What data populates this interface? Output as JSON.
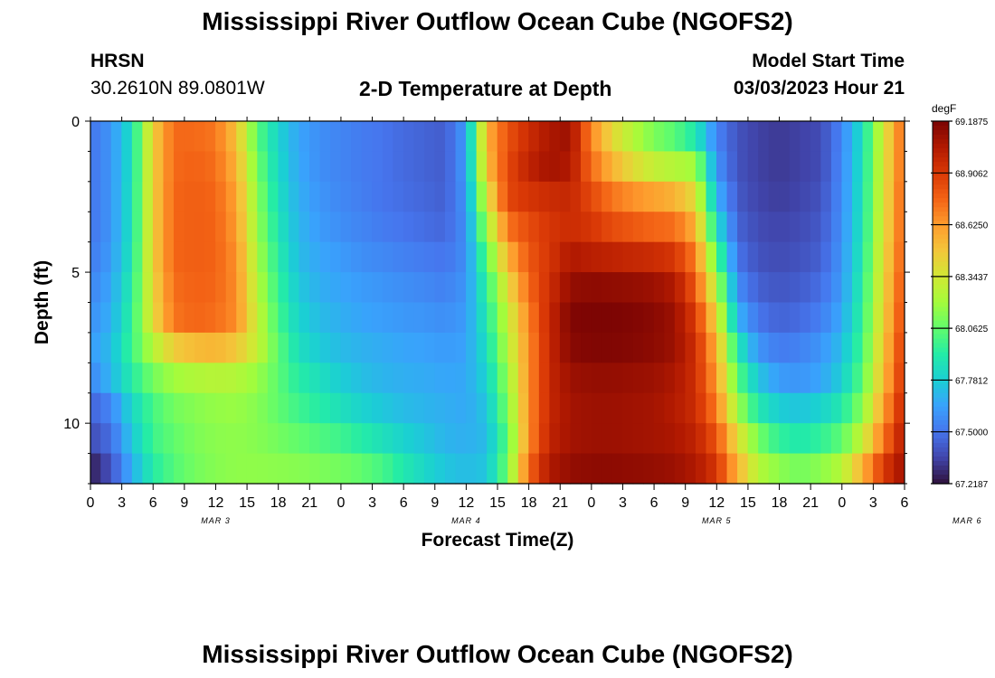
{
  "page": {
    "title": "Mississippi River Outflow Ocean Cube (NGOFS2)",
    "bottom_title": "Mississippi River Outflow Ocean Cube (NGOFS2)",
    "station": "HRSN",
    "coords": "30.2610N  89.0801W",
    "start_label": "Model Start Time",
    "start_value": "03/03/2023 Hour 21"
  },
  "colormap": [
    "#30123b",
    "#4145ab",
    "#4675ed",
    "#39a2fc",
    "#1bcfd4",
    "#24eca6",
    "#61fc6c",
    "#a4fc3b",
    "#d1e834",
    "#f3c63a",
    "#fe9b2d",
    "#f36315",
    "#d93806",
    "#b11901",
    "#7a0403"
  ],
  "chart_data": {
    "type": "heatmap",
    "title": "2-D Temperature at Depth",
    "xlabel": "Forecast Time(Z)",
    "ylabel": "Depth (ft)",
    "colorbar_unit": "degF",
    "colorbar_ticks": [
      "69.1875",
      "68.9062",
      "68.6250",
      "68.3437",
      "68.0625",
      "67.7812",
      "67.5000",
      "67.2187"
    ],
    "vmin": 67.2187,
    "vmax": 69.1875,
    "y_ticks": [
      "0",
      "5",
      "10"
    ],
    "ylim": [
      0,
      12
    ],
    "x_tick_labels": [
      "0",
      "3",
      "6",
      "9",
      "12",
      "15",
      "18",
      "21",
      "0",
      "3",
      "6",
      "9",
      "12",
      "15",
      "18",
      "21",
      "0",
      "3",
      "6",
      "9",
      "12",
      "15",
      "18",
      "21",
      "0",
      "3",
      "6"
    ],
    "date_labels": [
      "MAR 3",
      "MAR 4",
      "MAR 5",
      "MAR 6"
    ],
    "x_range_hours": [
      0,
      78
    ],
    "depth_levels_ft": [
      0.5,
      1.5,
      2.5,
      3.5,
      4.5,
      5.5,
      6.5,
      7.5,
      8.5,
      9.5,
      10.5,
      11.5
    ],
    "time_hours": [
      0,
      2,
      4,
      6,
      8,
      10,
      12,
      14,
      16,
      18,
      20,
      22,
      24,
      26,
      28,
      30,
      32,
      34,
      36,
      38,
      40,
      42,
      44,
      46,
      48,
      50,
      52,
      54,
      56,
      58,
      60,
      62,
      64,
      66,
      68,
      70,
      72,
      74,
      76,
      78
    ],
    "values_degF": [
      [
        67.5,
        67.6,
        67.85,
        68.45,
        68.75,
        68.75,
        68.72,
        68.5,
        68.05,
        67.8,
        67.65,
        67.58,
        67.55,
        67.52,
        67.5,
        67.47,
        67.45,
        67.43,
        67.62,
        68.55,
        68.82,
        68.96,
        69.06,
        69.1,
        68.68,
        68.42,
        68.25,
        68.12,
        68.04,
        67.9,
        67.55,
        67.4,
        67.35,
        67.33,
        67.35,
        67.38,
        67.55,
        67.85,
        68.35,
        68.78
      ],
      [
        67.5,
        67.6,
        67.85,
        68.45,
        68.75,
        68.77,
        68.74,
        68.55,
        68.1,
        67.82,
        67.66,
        67.58,
        67.55,
        67.52,
        67.5,
        67.47,
        67.45,
        67.43,
        67.62,
        68.5,
        68.85,
        69.0,
        69.08,
        69.05,
        68.75,
        68.55,
        68.4,
        68.3,
        68.25,
        68.2,
        67.6,
        67.4,
        67.35,
        67.33,
        67.35,
        67.38,
        67.56,
        67.86,
        68.36,
        68.78
      ],
      [
        67.5,
        67.6,
        67.86,
        68.45,
        68.76,
        68.78,
        68.76,
        68.6,
        68.15,
        67.85,
        67.68,
        67.6,
        67.56,
        67.53,
        67.5,
        67.48,
        67.46,
        67.44,
        67.6,
        68.35,
        68.86,
        68.92,
        68.96,
        68.98,
        68.85,
        68.72,
        68.65,
        68.6,
        68.55,
        68.4,
        67.7,
        67.42,
        67.36,
        67.34,
        67.36,
        67.4,
        67.57,
        67.87,
        68.37,
        68.8
      ],
      [
        67.5,
        67.6,
        67.86,
        68.45,
        68.76,
        68.78,
        68.77,
        68.62,
        68.18,
        67.88,
        67.7,
        67.62,
        67.58,
        67.55,
        67.52,
        67.5,
        67.48,
        67.46,
        67.58,
        68.2,
        68.72,
        68.84,
        68.92,
        68.96,
        68.92,
        68.84,
        68.8,
        68.76,
        68.74,
        68.56,
        67.85,
        67.45,
        67.38,
        67.36,
        67.38,
        67.42,
        67.58,
        67.88,
        68.38,
        68.8
      ],
      [
        67.52,
        67.62,
        67.88,
        68.45,
        68.76,
        68.78,
        68.77,
        68.65,
        68.22,
        67.92,
        67.72,
        67.65,
        67.62,
        67.58,
        67.56,
        67.54,
        67.52,
        67.5,
        67.58,
        68.05,
        68.55,
        68.8,
        68.92,
        69.05,
        69.02,
        69.0,
        68.98,
        68.96,
        68.92,
        68.7,
        68.05,
        67.5,
        67.4,
        67.38,
        67.4,
        67.44,
        67.6,
        67.9,
        68.4,
        68.82
      ],
      [
        67.55,
        67.65,
        67.92,
        68.42,
        68.74,
        68.77,
        68.76,
        68.66,
        68.26,
        67.96,
        67.76,
        67.68,
        67.65,
        67.62,
        67.6,
        67.58,
        67.56,
        67.54,
        67.6,
        67.95,
        68.4,
        68.75,
        68.95,
        69.12,
        69.14,
        69.13,
        69.12,
        69.1,
        69.05,
        68.8,
        68.25,
        67.58,
        67.44,
        67.41,
        67.43,
        67.48,
        67.62,
        67.93,
        68.42,
        68.85
      ],
      [
        67.58,
        67.68,
        67.95,
        68.4,
        68.72,
        68.76,
        68.74,
        68.66,
        68.3,
        68.0,
        67.8,
        67.72,
        67.68,
        67.65,
        67.63,
        67.61,
        67.6,
        67.58,
        67.62,
        67.9,
        68.3,
        68.68,
        68.98,
        69.17,
        69.18,
        69.18,
        69.17,
        69.15,
        69.1,
        68.9,
        68.42,
        67.7,
        67.5,
        67.45,
        67.47,
        67.53,
        67.66,
        67.96,
        68.44,
        68.88
      ],
      [
        67.62,
        67.72,
        67.98,
        68.25,
        68.46,
        68.52,
        68.54,
        68.48,
        68.3,
        68.05,
        67.85,
        67.77,
        67.72,
        67.69,
        67.67,
        67.65,
        67.64,
        67.62,
        67.64,
        67.85,
        68.25,
        68.65,
        68.98,
        69.15,
        69.17,
        69.17,
        69.16,
        69.14,
        69.1,
        68.95,
        68.55,
        67.9,
        67.6,
        67.52,
        67.54,
        67.6,
        67.72,
        68.0,
        68.48,
        68.92
      ],
      [
        67.56,
        67.7,
        67.92,
        68.1,
        68.2,
        68.24,
        68.26,
        68.25,
        68.18,
        68.05,
        67.92,
        67.85,
        67.78,
        67.73,
        67.7,
        67.68,
        67.67,
        67.65,
        67.66,
        67.8,
        68.18,
        68.65,
        68.98,
        69.1,
        69.12,
        69.12,
        69.11,
        69.1,
        69.06,
        68.95,
        68.62,
        68.05,
        67.75,
        67.62,
        67.6,
        67.65,
        67.78,
        68.05,
        68.52,
        68.95
      ],
      [
        67.45,
        67.55,
        67.82,
        68.0,
        68.1,
        68.14,
        68.17,
        68.18,
        68.14,
        68.06,
        67.98,
        67.92,
        67.86,
        67.8,
        67.76,
        67.72,
        67.7,
        67.68,
        67.66,
        67.75,
        68.12,
        68.65,
        68.98,
        69.08,
        69.1,
        69.1,
        69.09,
        69.08,
        69.04,
        68.96,
        68.7,
        68.2,
        67.9,
        67.78,
        67.75,
        67.8,
        67.9,
        68.15,
        68.6,
        69.0
      ],
      [
        67.38,
        67.48,
        67.76,
        67.98,
        68.06,
        68.12,
        68.15,
        68.16,
        68.14,
        68.1,
        68.06,
        68.02,
        67.98,
        67.92,
        67.86,
        67.8,
        67.75,
        67.7,
        67.68,
        67.72,
        68.05,
        68.65,
        69.0,
        69.08,
        69.1,
        69.1,
        69.09,
        69.08,
        69.06,
        69.0,
        68.82,
        68.4,
        68.1,
        67.95,
        67.9,
        67.95,
        68.05,
        68.3,
        68.72,
        69.05
      ],
      [
        67.25,
        67.4,
        67.68,
        67.92,
        68.03,
        68.1,
        68.14,
        68.16,
        68.16,
        68.15,
        68.14,
        68.12,
        68.1,
        68.06,
        68.0,
        67.9,
        67.82,
        67.75,
        67.72,
        67.75,
        68.1,
        68.75,
        69.05,
        69.12,
        69.14,
        69.14,
        69.13,
        69.12,
        69.1,
        69.05,
        68.92,
        68.55,
        68.25,
        68.15,
        68.1,
        68.15,
        68.25,
        68.55,
        68.9,
        69.1
      ]
    ]
  }
}
